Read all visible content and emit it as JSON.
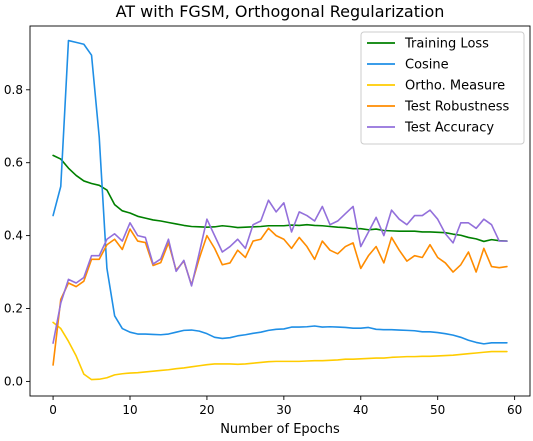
{
  "chart_data": {
    "type": "line",
    "title": "AT with FGSM, Orthogonal Regularization",
    "xlabel": "Number of Epochs",
    "ylabel": "",
    "xlim": [
      -3,
      62
    ],
    "ylim": [
      -0.04,
      0.975
    ],
    "x_ticks": [
      0,
      10,
      20,
      30,
      40,
      50,
      60
    ],
    "y_ticks": [
      0.0,
      0.2,
      0.4,
      0.6,
      0.8
    ],
    "x_tick_labels": [
      "0",
      "10",
      "20",
      "30",
      "40",
      "50",
      "60"
    ],
    "y_tick_labels": [
      "0.0",
      "0.2",
      "0.4",
      "0.6",
      "0.8"
    ],
    "grid": false,
    "legend_position": "top-right",
    "x": [
      0,
      1,
      2,
      3,
      4,
      5,
      6,
      7,
      8,
      9,
      10,
      11,
      12,
      13,
      14,
      15,
      16,
      17,
      18,
      19,
      20,
      21,
      22,
      23,
      24,
      25,
      26,
      27,
      28,
      29,
      30,
      31,
      32,
      33,
      34,
      35,
      36,
      37,
      38,
      39,
      40,
      41,
      42,
      43,
      44,
      45,
      46,
      47,
      48,
      49,
      50,
      51,
      52,
      53,
      54,
      55,
      56,
      57,
      58,
      59
    ],
    "series": [
      {
        "name": "Training Loss",
        "color": "#008000",
        "values": [
          0.62,
          0.61,
          0.585,
          0.565,
          0.55,
          0.543,
          0.538,
          0.525,
          0.485,
          0.468,
          0.462,
          0.453,
          0.448,
          0.443,
          0.44,
          0.436,
          0.432,
          0.428,
          0.425,
          0.424,
          0.423,
          0.424,
          0.427,
          0.425,
          0.422,
          0.423,
          0.424,
          0.425,
          0.427,
          0.427,
          0.427,
          0.429,
          0.428,
          0.43,
          0.428,
          0.427,
          0.425,
          0.423,
          0.422,
          0.419,
          0.419,
          0.416,
          0.418,
          0.414,
          0.413,
          0.412,
          0.412,
          0.412,
          0.41,
          0.41,
          0.409,
          0.408,
          0.404,
          0.401,
          0.395,
          0.391,
          0.384,
          0.389,
          0.386,
          0.385
        ]
      },
      {
        "name": "Cosine",
        "color": "#1f8fe6",
        "values": [
          0.455,
          0.535,
          0.935,
          0.93,
          0.925,
          0.895,
          0.67,
          0.31,
          0.18,
          0.145,
          0.135,
          0.13,
          0.13,
          0.129,
          0.128,
          0.13,
          0.135,
          0.14,
          0.141,
          0.138,
          0.131,
          0.121,
          0.118,
          0.12,
          0.125,
          0.128,
          0.132,
          0.135,
          0.14,
          0.143,
          0.144,
          0.149,
          0.149,
          0.15,
          0.152,
          0.149,
          0.15,
          0.149,
          0.148,
          0.146,
          0.146,
          0.148,
          0.143,
          0.142,
          0.142,
          0.141,
          0.14,
          0.139,
          0.136,
          0.136,
          0.134,
          0.131,
          0.127,
          0.121,
          0.113,
          0.107,
          0.103,
          0.106,
          0.106,
          0.106
        ]
      },
      {
        "name": "Ortho. Measure",
        "color": "#ffcc00",
        "values": [
          0.162,
          0.145,
          0.11,
          0.07,
          0.02,
          0.005,
          0.006,
          0.01,
          0.018,
          0.021,
          0.023,
          0.024,
          0.026,
          0.028,
          0.03,
          0.032,
          0.035,
          0.037,
          0.04,
          0.043,
          0.046,
          0.048,
          0.048,
          0.048,
          0.047,
          0.048,
          0.05,
          0.052,
          0.054,
          0.055,
          0.055,
          0.055,
          0.055,
          0.056,
          0.057,
          0.057,
          0.058,
          0.059,
          0.061,
          0.061,
          0.062,
          0.063,
          0.064,
          0.064,
          0.066,
          0.067,
          0.068,
          0.068,
          0.069,
          0.069,
          0.07,
          0.071,
          0.072,
          0.074,
          0.076,
          0.078,
          0.08,
          0.082,
          0.082,
          0.082
        ]
      },
      {
        "name": "Test Robustness",
        "color": "#ff8c00",
        "values": [
          0.045,
          0.225,
          0.27,
          0.26,
          0.275,
          0.335,
          0.335,
          0.375,
          0.39,
          0.362,
          0.418,
          0.385,
          0.381,
          0.318,
          0.326,
          0.38,
          0.305,
          0.33,
          0.265,
          0.337,
          0.4,
          0.365,
          0.32,
          0.325,
          0.36,
          0.34,
          0.385,
          0.39,
          0.42,
          0.4,
          0.39,
          0.365,
          0.395,
          0.37,
          0.335,
          0.385,
          0.36,
          0.35,
          0.37,
          0.38,
          0.31,
          0.345,
          0.37,
          0.325,
          0.395,
          0.36,
          0.33,
          0.345,
          0.34,
          0.375,
          0.34,
          0.325,
          0.3,
          0.32,
          0.355,
          0.3,
          0.365,
          0.315,
          0.312,
          0.315
        ]
      },
      {
        "name": "Test Accuracy",
        "color": "#9370db",
        "values": [
          0.105,
          0.215,
          0.28,
          0.27,
          0.285,
          0.345,
          0.345,
          0.39,
          0.405,
          0.385,
          0.435,
          0.4,
          0.395,
          0.322,
          0.336,
          0.39,
          0.302,
          0.332,
          0.262,
          0.352,
          0.445,
          0.4,
          0.355,
          0.37,
          0.39,
          0.365,
          0.43,
          0.44,
          0.497,
          0.465,
          0.49,
          0.41,
          0.465,
          0.455,
          0.44,
          0.48,
          0.43,
          0.44,
          0.46,
          0.48,
          0.37,
          0.41,
          0.45,
          0.4,
          0.47,
          0.445,
          0.43,
          0.455,
          0.455,
          0.47,
          0.445,
          0.405,
          0.38,
          0.435,
          0.435,
          0.42,
          0.445,
          0.43,
          0.385,
          0.385
        ]
      }
    ]
  }
}
